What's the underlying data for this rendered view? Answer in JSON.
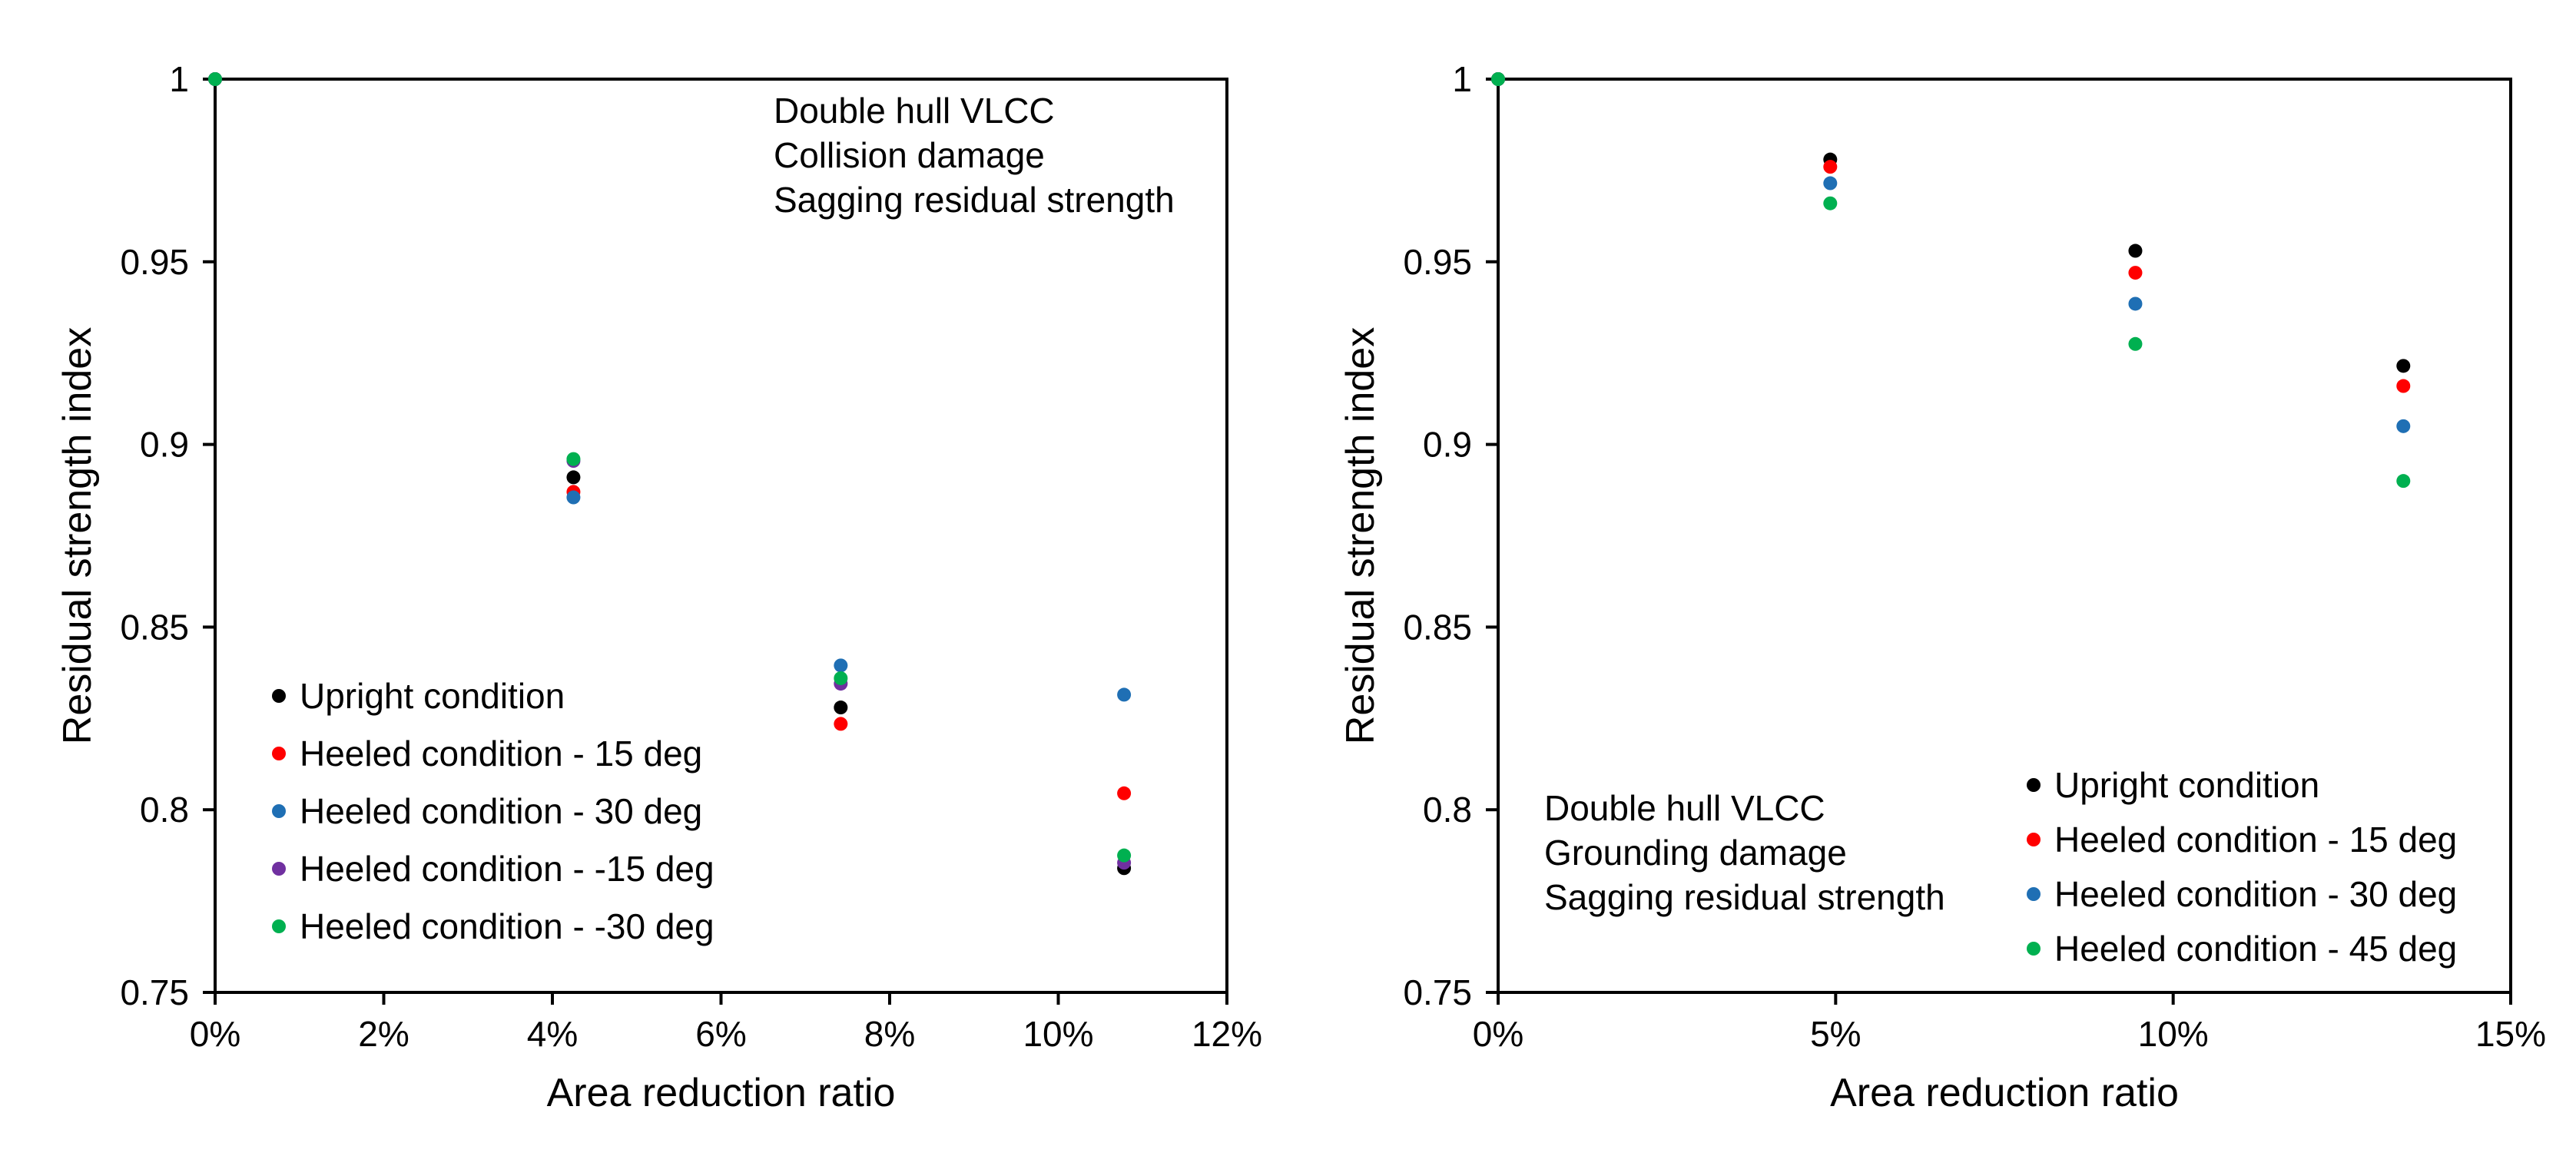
{
  "chart_data": [
    {
      "type": "scatter",
      "xlabel": "Area reduction ratio",
      "ylabel": "Residual strength index",
      "xlim": [
        0,
        0.12
      ],
      "ylim": [
        0.75,
        1.0
      ],
      "x_ticks": [
        0,
        0.02,
        0.04,
        0.06,
        0.08,
        0.1,
        0.12
      ],
      "x_tick_labels": [
        "0%",
        "2%",
        "4%",
        "6%",
        "8%",
        "10%",
        "12%"
      ],
      "y_ticks": [
        0.75,
        0.8,
        0.85,
        0.9,
        0.95,
        1.0
      ],
      "y_tick_labels": [
        "0.75",
        "0.8",
        "0.85",
        "0.9",
        "0.95",
        "1"
      ],
      "annotation": [
        "Double hull VLCC",
        "Collision damage",
        "Sagging residual strength"
      ],
      "legend_position": "bottom-left",
      "series": [
        {
          "name": "Upright condition",
          "color": "#000000",
          "x": [
            0,
            0.0425,
            0.0742,
            0.1078
          ],
          "y": [
            1.0,
            0.891,
            0.828,
            0.784
          ]
        },
        {
          "name": "Heeled condition - 15 deg",
          "color": "#ff0000",
          "x": [
            0,
            0.0425,
            0.0742,
            0.1078
          ],
          "y": [
            1.0,
            0.887,
            0.8235,
            0.8045
          ]
        },
        {
          "name": "Heeled condition - 30 deg",
          "color": "#1f6fb4",
          "x": [
            0,
            0.0425,
            0.0742,
            0.1078
          ],
          "y": [
            1.0,
            0.8855,
            0.8395,
            0.8315
          ]
        },
        {
          "name": "Heeled condition - -15 deg",
          "color": "#7030a0",
          "x": [
            0,
            0.0425,
            0.0742,
            0.1078
          ],
          "y": [
            1.0,
            0.8955,
            0.8345,
            0.7855
          ]
        },
        {
          "name": "Heeled condition - -30 deg",
          "color": "#00b050",
          "x": [
            0,
            0.0425,
            0.0742,
            0.1078
          ],
          "y": [
            1.0,
            0.896,
            0.836,
            0.7875
          ]
        }
      ]
    },
    {
      "type": "scatter",
      "xlabel": "Area reduction ratio",
      "ylabel": "Residual strength index",
      "xlim": [
        0,
        0.15
      ],
      "ylim": [
        0.75,
        1.0
      ],
      "x_ticks": [
        0,
        0.05,
        0.1,
        0.15
      ],
      "x_tick_labels": [
        "0%",
        "5%",
        "10%",
        "15%"
      ],
      "y_ticks": [
        0.75,
        0.8,
        0.85,
        0.9,
        0.95,
        1.0
      ],
      "y_tick_labels": [
        "0.75",
        "0.8",
        "0.85",
        "0.9",
        "0.95",
        "1"
      ],
      "annotation": [
        "Double hull VLCC",
        "Grounding damage",
        "Sagging residual strength"
      ],
      "legend_position": "bottom-right",
      "series": [
        {
          "name": "Upright condition",
          "color": "#000000",
          "x": [
            0,
            0.0492,
            0.0944,
            0.1341
          ],
          "y": [
            1.0,
            0.978,
            0.953,
            0.9215
          ]
        },
        {
          "name": "Heeled condition - 15 deg",
          "color": "#ff0000",
          "x": [
            0,
            0.0492,
            0.0944,
            0.1341
          ],
          "y": [
            1.0,
            0.976,
            0.947,
            0.916
          ]
        },
        {
          "name": "Heeled condition - 30 deg",
          "color": "#1f6fb4",
          "x": [
            0,
            0.0492,
            0.0944,
            0.1341
          ],
          "y": [
            1.0,
            0.9715,
            0.9385,
            0.905
          ]
        },
        {
          "name": "Heeled condition - 45 deg",
          "color": "#00b050",
          "x": [
            0,
            0.0492,
            0.0944,
            0.1341
          ],
          "y": [
            1.0,
            0.966,
            0.9275,
            0.89
          ]
        }
      ]
    }
  ]
}
